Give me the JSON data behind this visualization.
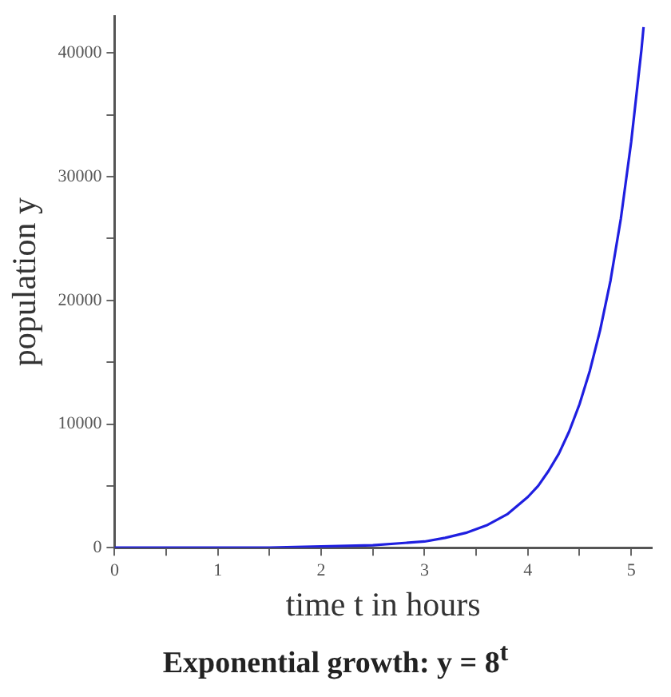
{
  "chart_data": {
    "type": "line",
    "title": "Exponential growth: y = 8$^{t}$",
    "xlabel": "time t in hours",
    "ylabel": "population y",
    "series": [
      {
        "color": "#1f1fe0",
        "x": [
          0,
          0.5,
          1,
          1.5,
          2,
          2.5,
          3,
          3.2,
          3.4,
          3.6,
          3.8,
          4,
          4.1,
          4.2,
          4.3,
          4.4,
          4.5,
          4.6,
          4.7,
          4.8,
          4.9,
          5,
          5.1,
          5.12
        ],
        "values": [
          0,
          0,
          0,
          0,
          100,
          200,
          500,
          800,
          1200,
          1800,
          2700,
          4100,
          5000,
          6200,
          7600,
          9400,
          11600,
          14300,
          17600,
          21600,
          26600,
          32800,
          40300,
          42100
        ]
      }
    ],
    "xlim": [
      0,
      5.2
    ],
    "xticks": [
      0,
      {
        "value": 0.5,
        "label": null
      },
      1,
      {
        "value": 1.5,
        "label": null
      },
      2,
      {
        "value": 2.5,
        "label": null
      },
      3,
      {
        "value": 3.5,
        "label": null
      },
      4,
      {
        "value": 4.5,
        "label": null
      },
      5
    ],
    "ylim": [
      0,
      43000
    ],
    "yticks": [
      0,
      {
        "value": 5000,
        "label": null
      },
      10000,
      {
        "value": 15000,
        "label": null
      },
      20000,
      {
        "value": 25000,
        "label": null
      },
      30000,
      {
        "value": 35000,
        "label": null
      },
      40000
    ],
    "grid": false,
    "legend": false,
    "marker": "none",
    "line_style": "solid"
  }
}
